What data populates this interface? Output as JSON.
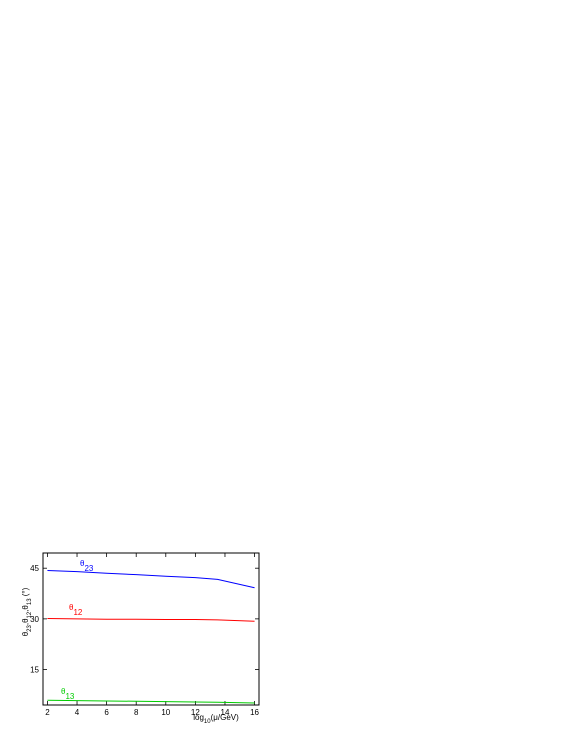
{
  "chart_data": {
    "type": "line",
    "xlabel": [
      "log",
      "10",
      "(μ/GeV)"
    ],
    "ylabel": [
      "θ",
      "23",
      ",θ",
      "12",
      ",θ",
      "13",
      " (°)"
    ],
    "x": [
      2,
      4,
      6,
      8,
      10,
      12,
      13.5,
      16
    ],
    "series": [
      {
        "name": "θ",
        "sub": "23",
        "color": "#0000ff",
        "values": [
          44.3,
          44.0,
          43.5,
          43.1,
          42.6,
          42.2,
          41.7,
          39.2
        ]
      },
      {
        "name": "θ",
        "sub": "12",
        "color": "#ff0000",
        "values": [
          30.1,
          30.0,
          29.9,
          29.9,
          29.8,
          29.8,
          29.7,
          29.3
        ]
      },
      {
        "name": "θ",
        "sub": "13",
        "color": "#00cc00",
        "values": [
          5.9,
          5.8,
          5.7,
          5.6,
          5.5,
          5.4,
          5.3,
          5.1
        ]
      }
    ],
    "xlim": [
      1.7,
      16.3
    ],
    "xticks": [
      2,
      4,
      6,
      8,
      10,
      12,
      14,
      16
    ],
    "ylim": [
      4.5,
      49.5
    ],
    "yticks": [
      15,
      30,
      45
    ]
  }
}
